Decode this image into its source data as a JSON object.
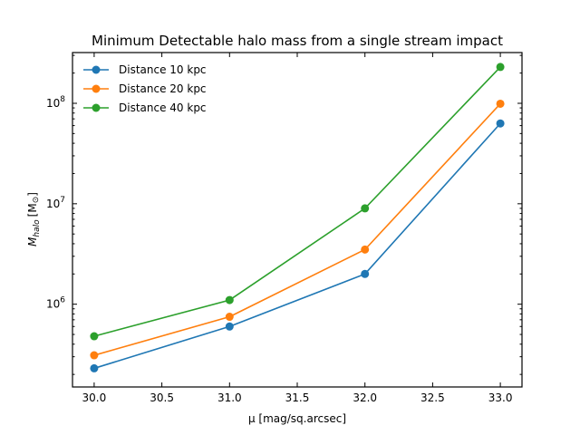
{
  "chart_data": {
    "type": "line",
    "title": "Minimum Detectable halo mass from a single stream impact",
    "xlabel": "μ [mag/sq.arcsec]",
    "ylabel": {
      "main": "M",
      "sub": "halo",
      "unit_open": "[M",
      "unit_symbol": "⊙",
      "unit_close": "]"
    },
    "xlim": [
      29.84,
      33.16
    ],
    "ylim": [
      150000,
      320000000
    ],
    "yscale": "log",
    "xticks": [
      30.0,
      30.5,
      31.0,
      31.5,
      32.0,
      32.5,
      33.0
    ],
    "xtick_labels": [
      "30.0",
      "30.5",
      "31.0",
      "31.5",
      "32.0",
      "32.5",
      "33.0"
    ],
    "yticks": [
      {
        "value": 1000000,
        "base": "10",
        "exp": "6"
      },
      {
        "value": 10000000,
        "base": "10",
        "exp": "7"
      },
      {
        "value": 100000000,
        "base": "10",
        "exp": "8"
      }
    ],
    "legend_position": "top-left",
    "grid": false,
    "series": [
      {
        "name": "Distance 10 kpc",
        "color": "#1f77b4",
        "x": [
          30,
          31,
          32,
          33
        ],
        "y": [
          230000,
          600000,
          2000000,
          63000000
        ]
      },
      {
        "name": "Distance 20 kpc",
        "color": "#ff7f0e",
        "x": [
          30,
          31,
          32,
          33
        ],
        "y": [
          310000,
          750000,
          3500000,
          99000000
        ]
      },
      {
        "name": "Distance 40 kpc",
        "color": "#2ca02c",
        "x": [
          30,
          31,
          32,
          33
        ],
        "y": [
          480000,
          1100000,
          9000000,
          230000000
        ]
      }
    ]
  }
}
